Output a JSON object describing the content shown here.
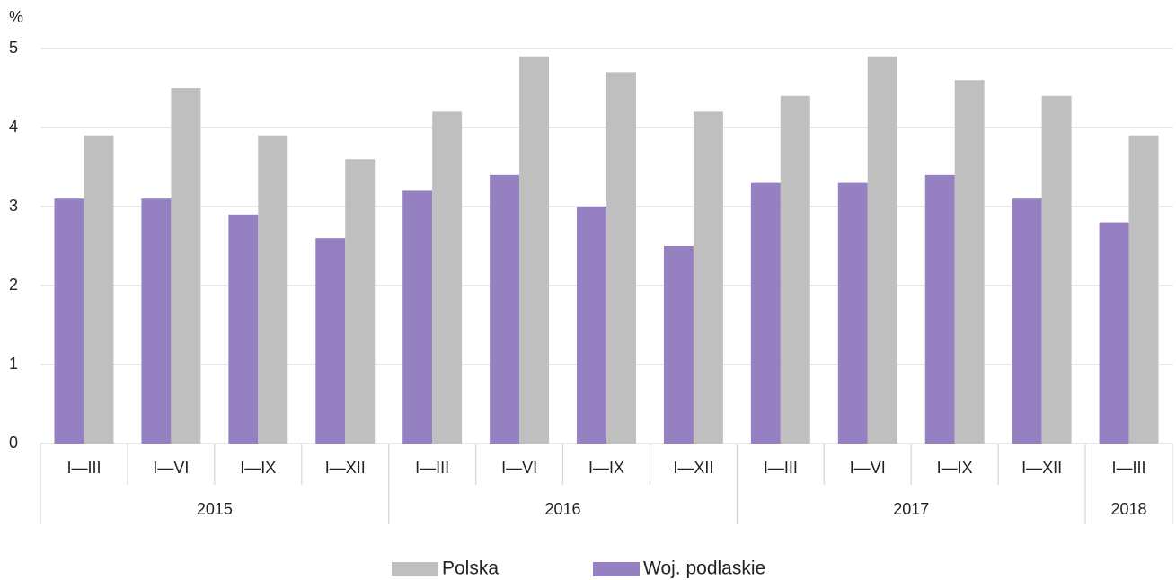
{
  "chart_data": {
    "type": "bar",
    "y_label": "%",
    "groups": [
      {
        "label": "2015",
        "categories": [
          "I—III",
          "I—VI",
          "I—IX",
          "I—XII"
        ]
      },
      {
        "label": "2016",
        "categories": [
          "I—III",
          "I—VI",
          "I—IX",
          "I—XII"
        ]
      },
      {
        "label": "2017",
        "categories": [
          "I—III",
          "I—VI",
          "I—IX",
          "I—XII"
        ]
      },
      {
        "label": "2018",
        "categories": [
          "I—III"
        ]
      }
    ],
    "series": [
      {
        "name": "Woj. podlaskie",
        "color": "#9580c1",
        "values": [
          3.1,
          3.1,
          2.9,
          2.6,
          3.2,
          3.4,
          3.0,
          2.5,
          3.3,
          3.3,
          3.4,
          3.1,
          2.8
        ]
      },
      {
        "name": "Polska",
        "color": "#bfbfbf",
        "values": [
          3.9,
          4.5,
          3.9,
          3.6,
          4.2,
          4.9,
          4.7,
          4.2,
          4.4,
          4.9,
          4.6,
          4.4,
          3.9
        ]
      }
    ],
    "ylim": [
      0,
      5
    ],
    "yticks": [
      0,
      1,
      2,
      3,
      4,
      5
    ],
    "grid": true
  }
}
